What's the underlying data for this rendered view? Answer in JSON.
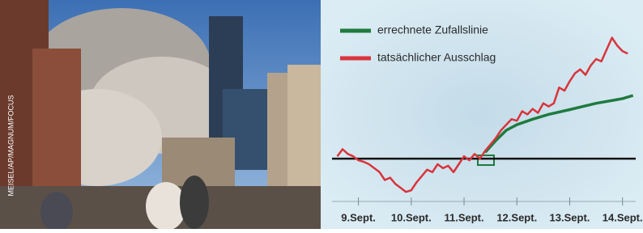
{
  "photo_credit": "MEISEL/AP/MAGNUM/FOCUS",
  "chart_data": {
    "type": "line",
    "xlim": [
      8.5,
      14.25
    ],
    "xticks": [
      {
        "value": 9,
        "label": "9.Sept."
      },
      {
        "value": 10,
        "label": "10.Sept."
      },
      {
        "value": 11,
        "label": "11.Sept."
      },
      {
        "value": 12,
        "label": "12.Sept."
      },
      {
        "value": 13,
        "label": "13.Sept."
      },
      {
        "value": 14,
        "label": "14.Sept."
      }
    ],
    "ylim": [
      -5,
      17
    ],
    "baseline": 0,
    "series": [
      {
        "name": "errechnete Zufallslinie",
        "color": "#1f7a3e",
        "x": [
          11.4,
          11.6,
          11.8,
          12.0,
          12.3,
          12.6,
          13.0,
          13.5,
          14.0,
          14.2
        ],
        "values": [
          0.8,
          2.3,
          3.6,
          4.3,
          5.0,
          5.6,
          6.2,
          7.0,
          7.6,
          8.0
        ]
      },
      {
        "name": "tatsächlicher Ausschlag",
        "color": "#d9343c",
        "x": [
          8.6,
          8.7,
          8.8,
          8.9,
          9.0,
          9.1,
          9.2,
          9.3,
          9.4,
          9.5,
          9.6,
          9.7,
          9.8,
          9.9,
          10.0,
          10.1,
          10.2,
          10.3,
          10.4,
          10.5,
          10.6,
          10.7,
          10.8,
          10.9,
          11.0,
          11.1,
          11.2,
          11.3,
          11.4,
          11.5,
          11.6,
          11.7,
          11.8,
          11.9,
          12.0,
          12.1,
          12.2,
          12.3,
          12.4,
          12.5,
          12.6,
          12.7,
          12.8,
          12.9,
          13.0,
          13.1,
          13.2,
          13.3,
          13.4,
          13.5,
          13.6,
          13.7,
          13.8,
          13.9,
          14.0,
          14.1
        ],
        "values": [
          0.3,
          1.2,
          0.6,
          0.3,
          -0.2,
          -0.4,
          -0.7,
          -1.2,
          -1.7,
          -2.7,
          -2.4,
          -3.2,
          -3.7,
          -4.2,
          -4.0,
          -3.0,
          -2.2,
          -1.4,
          -1.7,
          -0.7,
          -1.2,
          -0.9,
          -1.7,
          -0.7,
          0.3,
          -0.2,
          0.6,
          0.0,
          1.0,
          1.8,
          2.6,
          3.6,
          4.3,
          5.0,
          4.8,
          6.0,
          5.6,
          6.3,
          5.8,
          7.0,
          6.6,
          7.0,
          9.0,
          8.6,
          9.8,
          10.8,
          11.3,
          10.6,
          11.8,
          12.6,
          12.3,
          13.8,
          15.3,
          14.3,
          13.6,
          13.3
        ]
      }
    ]
  }
}
